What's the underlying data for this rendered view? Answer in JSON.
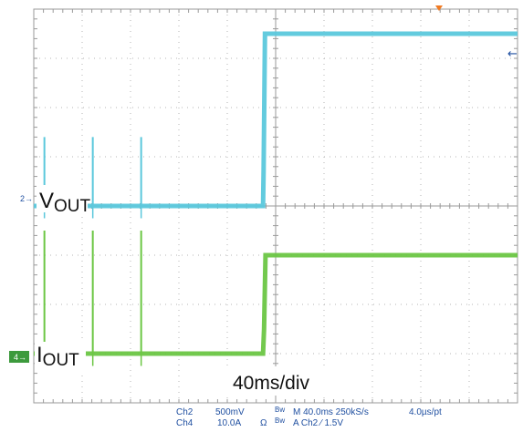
{
  "chart_data": {
    "type": "line",
    "title": "",
    "x_grid_divisions": 10,
    "y_grid_divisions": 8,
    "timebase_label": "40ms/div",
    "grid": true,
    "series": [
      {
        "name": "VOUT",
        "label_main": "V",
        "label_sub": "OUT",
        "channel": "2",
        "color": "#5bc8dc",
        "baseline_div": 0,
        "x_div": [
          0,
          4.74,
          4.75,
          4.78,
          10
        ],
        "y_div": [
          0,
          0,
          0.7,
          3.5,
          3.5
        ],
        "spikes_x_div": [
          0.22,
          1.22,
          2.22
        ],
        "spike_height_div": 1.4
      },
      {
        "name": "IOUT",
        "label_main": "I",
        "label_sub": "OUT",
        "channel": "4",
        "color": "#6cc644",
        "baseline_div": -3,
        "x_div": [
          0,
          4.74,
          4.76,
          4.79,
          10
        ],
        "y_div": [
          0,
          0,
          0.5,
          2,
          2
        ],
        "spikes_x_div": [
          0.22,
          1.22,
          2.22
        ],
        "spike_height_div": 2.5
      }
    ],
    "status": {
      "ch2_name": "Ch2",
      "ch2_scale": "500mV",
      "ch2_bw": "Bw",
      "ch4_name": "Ch4",
      "ch4_scale": "10.0A",
      "ch4_ohm": "Ω",
      "ch4_bw": "Bw",
      "horizontal": "M 40.0ms 250kS/s",
      "resolution": "4.0µs/pt",
      "trigger": "A  Ch2  ⁄  1.5V"
    }
  }
}
